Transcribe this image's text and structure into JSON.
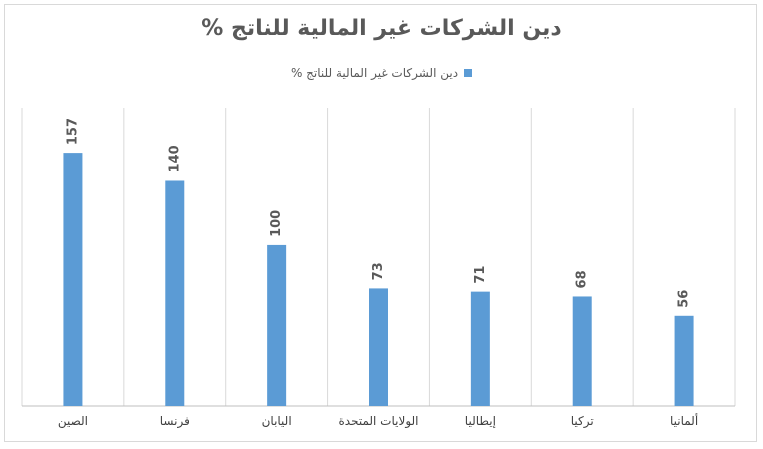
{
  "colors": {
    "bar": "#5b9bd5",
    "gridline": "#d9d9d9",
    "axis": "#bfbfbf",
    "text": "#595959"
  },
  "chart_data": {
    "type": "bar",
    "title": "دين الشركات غير المالية للناتج %",
    "xlabel": "",
    "ylabel": "",
    "categories": [
      "الصين",
      "فرنسا",
      "اليابان",
      "الولايات المتحدة",
      "إيطاليا",
      "تركيا",
      "ألمانيا"
    ],
    "series": [
      {
        "name": "دين الشركات غير المالية للناتج %",
        "values": [
          157,
          140,
          100,
          73,
          71,
          68,
          56
        ]
      }
    ],
    "ylim": [
      0,
      185
    ],
    "grid": "vertical-category-separators",
    "legend_position": "top"
  }
}
